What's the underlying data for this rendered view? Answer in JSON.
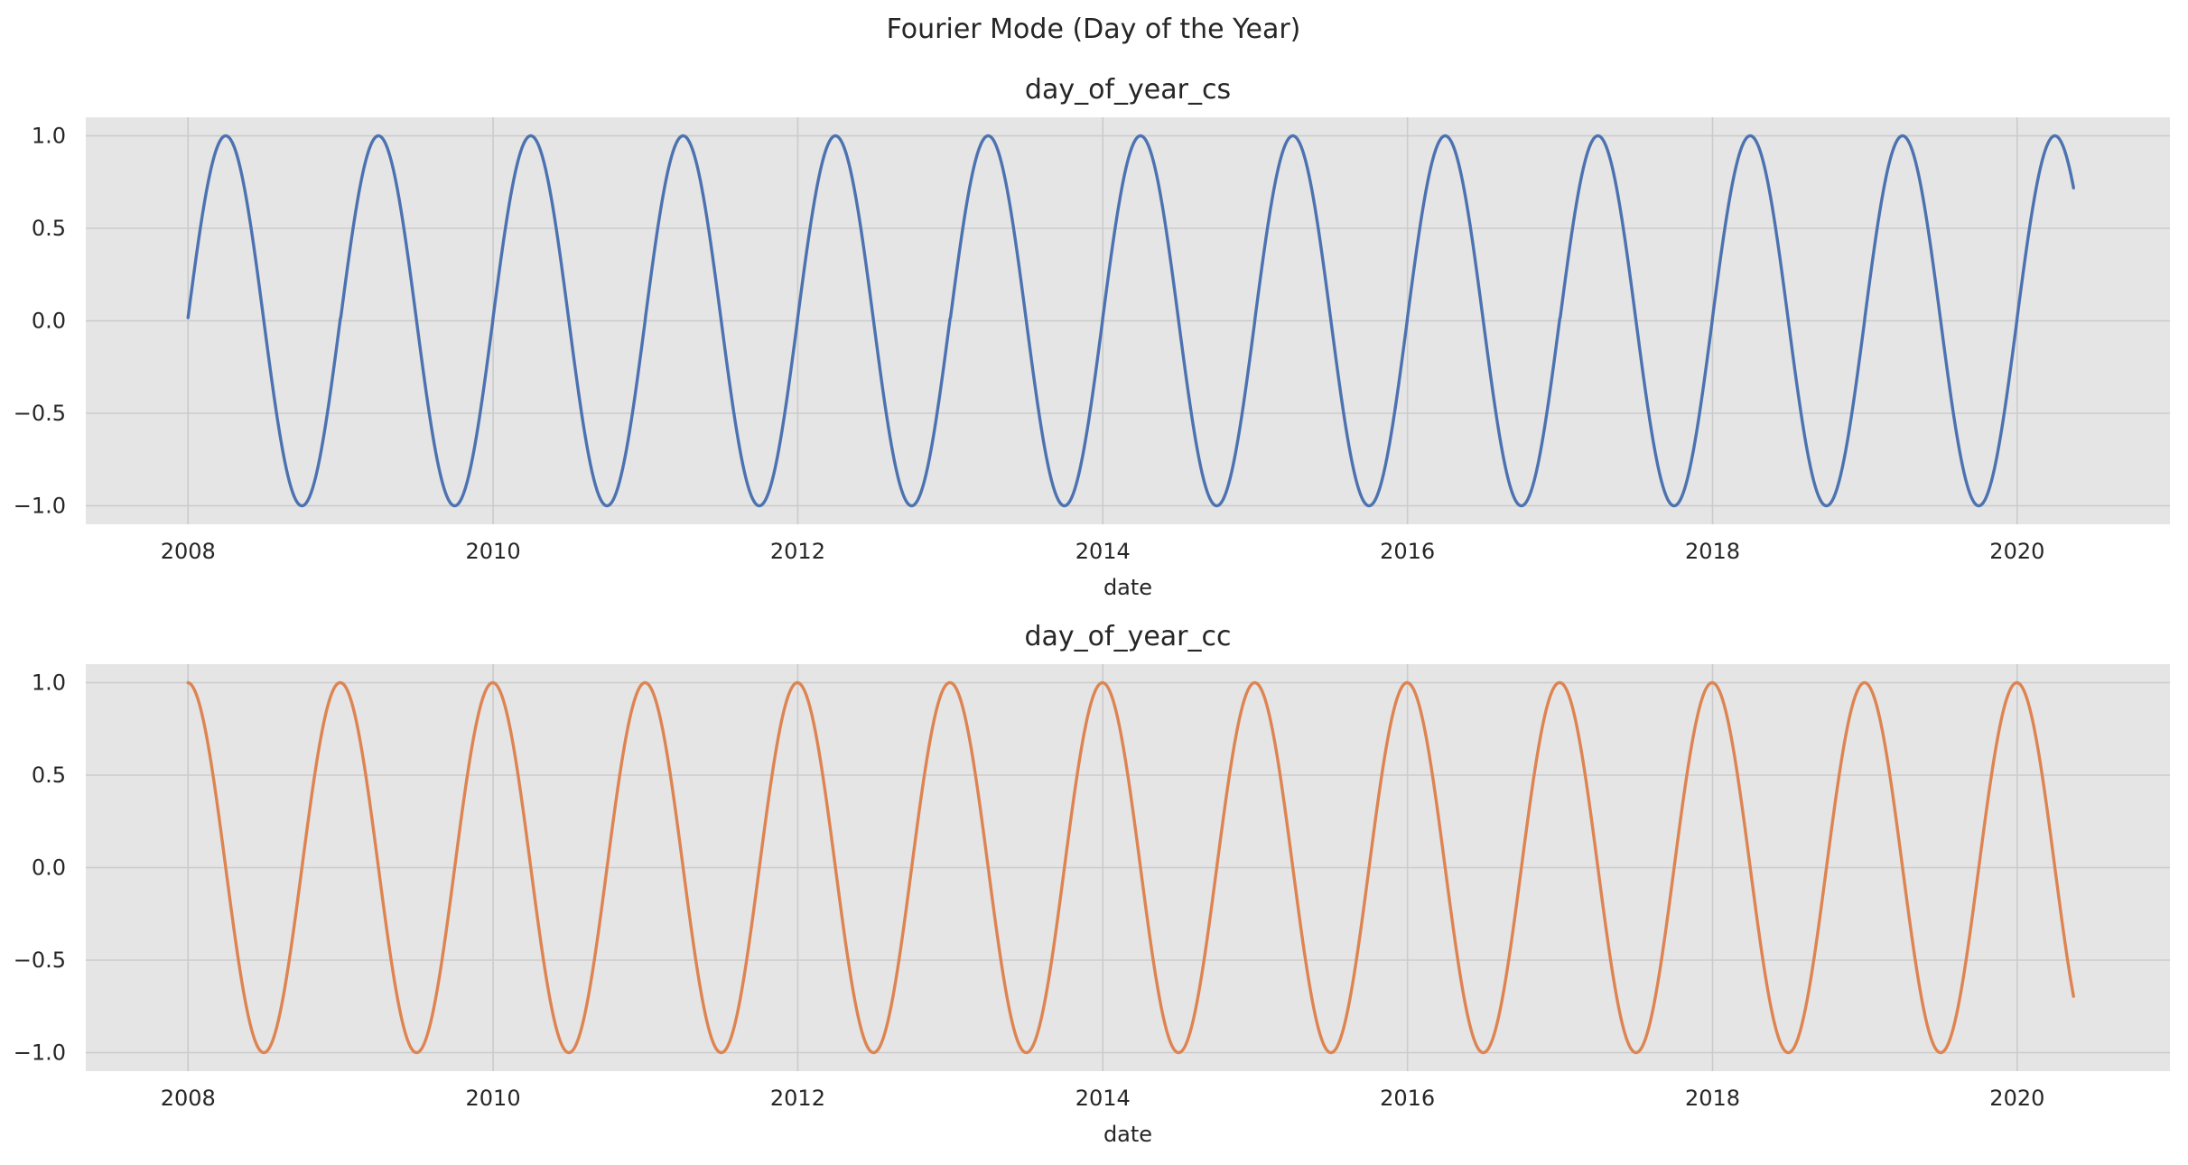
{
  "figure": {
    "title": "Fourier Mode (Day of the Year)"
  },
  "chart_data": [
    {
      "type": "line",
      "title": "day_of_year_cs",
      "xlabel": "date",
      "ylabel": "",
      "x_range": [
        "2008-01-01",
        "2020-05-15"
      ],
      "xlim": [
        "2007-05-01",
        "2021-01-01"
      ],
      "ylim": [
        -1.1,
        1.1
      ],
      "xticks": [
        "2008",
        "2010",
        "2012",
        "2014",
        "2016",
        "2018",
        "2020"
      ],
      "yticks": [
        "1.0",
        "0.5",
        "0.0",
        "−0.5",
        "−1.0"
      ],
      "grid": true,
      "series": [
        {
          "function": "sin(2π · day_of_year / 365.25)",
          "color": "#4c72b0"
        }
      ]
    },
    {
      "type": "line",
      "title": "day_of_year_cc",
      "xlabel": "date",
      "ylabel": "",
      "x_range": [
        "2008-01-01",
        "2020-05-15"
      ],
      "xlim": [
        "2007-05-01",
        "2021-01-01"
      ],
      "ylim": [
        -1.1,
        1.1
      ],
      "xticks": [
        "2008",
        "2010",
        "2012",
        "2014",
        "2016",
        "2018",
        "2020"
      ],
      "yticks": [
        "1.0",
        "0.5",
        "0.0",
        "−0.5",
        "−1.0"
      ],
      "grid": true,
      "series": [
        {
          "function": "cos(2π · day_of_year / 365.25)",
          "color": "#dd8452"
        }
      ]
    }
  ]
}
